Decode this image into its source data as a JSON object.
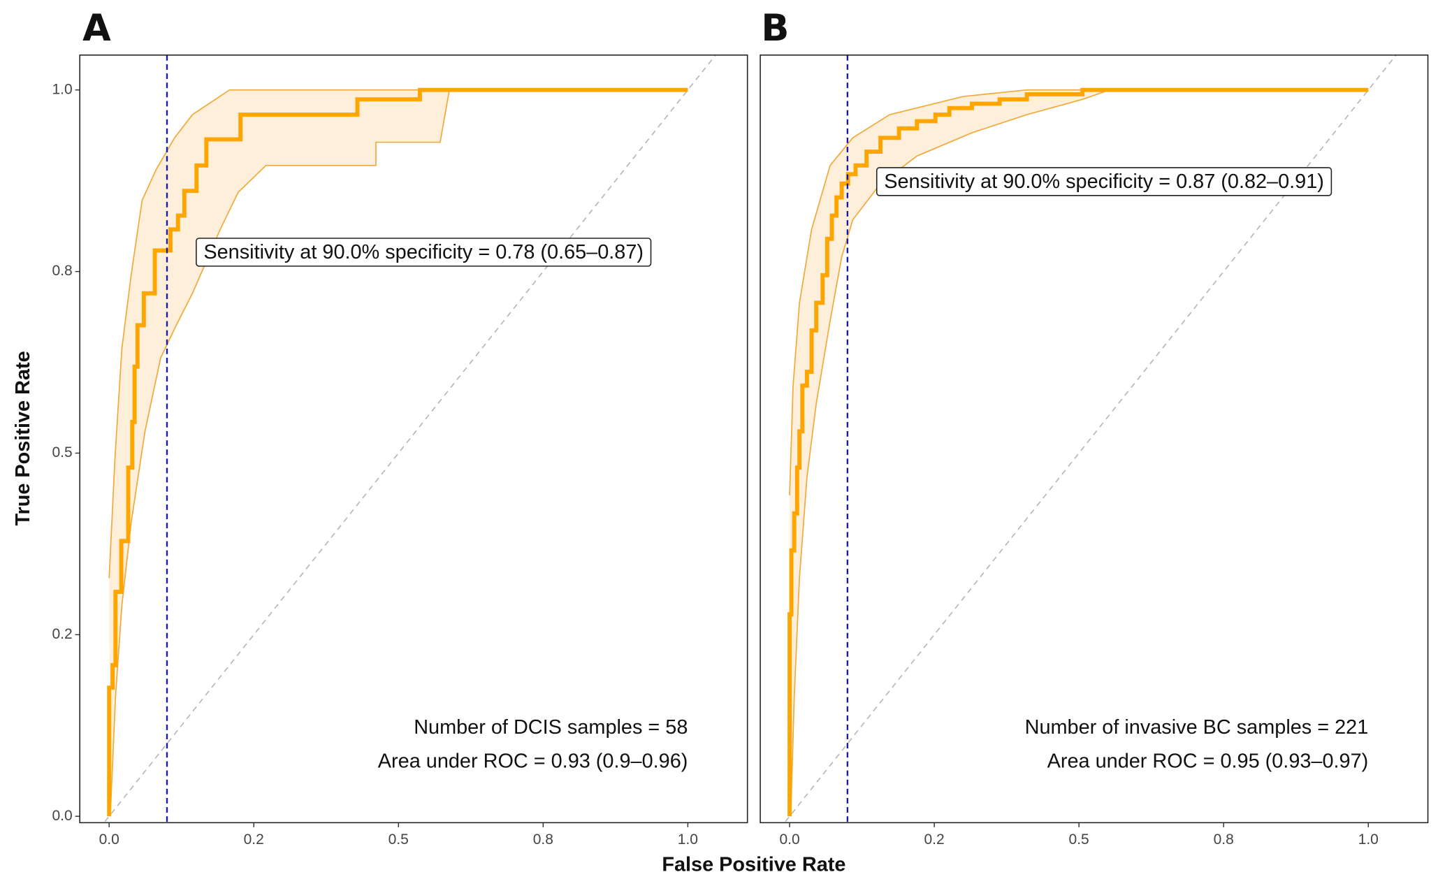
{
  "figure": {
    "xlabel": "False Positive Rate",
    "ylabel": "True Positive Rate"
  },
  "chart_data": [
    {
      "type": "line",
      "panel_label": "A",
      "xlim": [
        -0.0507,
        1.103
      ],
      "ylim": [
        -0.0088,
        1.048
      ],
      "xticks": [
        {
          "value": 0,
          "label": "0.0"
        },
        {
          "value": 0.25,
          "label": "0.2"
        },
        0.5,
        {
          "value": 0.75,
          "label": "0.8"
        },
        {
          "value": 1,
          "label": "1.0"
        }
      ],
      "yticks": [
        {
          "value": 0,
          "label": "0.0"
        },
        {
          "value": 0.25,
          "label": "0.2"
        },
        0.5,
        {
          "value": 0.75,
          "label": "0.8"
        },
        {
          "value": 1,
          "label": "1.0"
        }
      ],
      "vline": 0.1,
      "vline_color": "#1a1aa6",
      "diagonal": true,
      "annotation": "Sensitivity at 90.0% specificity = 0.78 (0.65–0.87)",
      "notes": [
        "Number of DCIS samples = 58",
        "Area under ROC = 0.93 (0.9–0.96)"
      ],
      "series": [
        {
          "color": "#FFA500",
          "x": [
            0,
            0,
            0.006,
            0.006,
            0.011,
            0.011,
            0.021,
            0.021,
            0.033,
            0.033,
            0.04,
            0.04,
            0.044,
            0.044,
            0.049,
            0.049,
            0.06,
            0.06,
            0.079,
            0.079,
            0.106,
            0.106,
            0.119,
            0.119,
            0.13,
            0.13,
            0.151,
            0.151,
            0.168,
            0.168,
            0.227,
            0.227,
            0.429,
            0.429,
            0.537,
            0.537,
            1
          ],
          "values": [
            0,
            0.177,
            0.177,
            0.208,
            0.208,
            0.309,
            0.309,
            0.379,
            0.379,
            0.48,
            0.48,
            0.543,
            0.543,
            0.619,
            0.619,
            0.676,
            0.676,
            0.72,
            0.72,
            0.779,
            0.779,
            0.808,
            0.808,
            0.827,
            0.827,
            0.861,
            0.861,
            0.896,
            0.896,
            0.932,
            0.932,
            0.966,
            0.966,
            0.987,
            0.987,
            1,
            1
          ]
        }
      ],
      "ci": {
        "color": "#F2A93B",
        "fill": "#FDEFD9",
        "upper": {
          "x": [
            0,
            0.01,
            0.022,
            0.038,
            0.057,
            0.081,
            0.113,
            0.144,
            0.208,
            1
          ],
          "values": [
            0.328,
            0.492,
            0.644,
            0.745,
            0.848,
            0.89,
            0.934,
            0.966,
            1,
            1
          ]
        },
        "lower": {
          "x": [
            0.002,
            0.011,
            0.022,
            0.038,
            0.062,
            0.089,
            0.116,
            0.144,
            0.192,
            0.223,
            0.271,
            0.461,
            0.461,
            0.572,
            0.588,
            1
          ],
          "values": [
            0,
            0.164,
            0.29,
            0.404,
            0.53,
            0.631,
            0.676,
            0.72,
            0.808,
            0.859,
            0.896,
            0.896,
            0.928,
            0.928,
            1,
            1
          ]
        }
      }
    },
    {
      "type": "line",
      "panel_label": "B",
      "xlim": [
        -0.0507,
        1.103
      ],
      "ylim": [
        -0.0088,
        1.048
      ],
      "xticks": [
        {
          "value": 0,
          "label": "0.0"
        },
        {
          "value": 0.25,
          "label": "0.2"
        },
        0.5,
        {
          "value": 0.75,
          "label": "0.8"
        },
        {
          "value": 1,
          "label": "1.0"
        }
      ],
      "vline": 0.1,
      "vline_color": "#1a1aa6",
      "diagonal": true,
      "annotation": "Sensitivity at 90.0% specificity = 0.87 (0.82–0.91)",
      "notes": [
        "Number of invasive BC samples = 221",
        "Area under ROC = 0.95 (0.93–0.97)"
      ],
      "series": [
        {
          "color": "#FFA500",
          "x": [
            0,
            0,
            0.003,
            0.003,
            0.008,
            0.008,
            0.013,
            0.013,
            0.017,
            0.017,
            0.022,
            0.022,
            0.03,
            0.03,
            0.038,
            0.038,
            0.046,
            0.046,
            0.057,
            0.057,
            0.065,
            0.065,
            0.073,
            0.073,
            0.081,
            0.081,
            0.09,
            0.09,
            0.101,
            0.101,
            0.114,
            0.114,
            0.133,
            0.133,
            0.157,
            0.157,
            0.189,
            0.189,
            0.22,
            0.22,
            0.252,
            0.252,
            0.276,
            0.276,
            0.315,
            0.315,
            0.363,
            0.363,
            0.41,
            0.41,
            0.506,
            0.506,
            1
          ],
          "values": [
            0,
            0.278,
            0.278,
            0.366,
            0.366,
            0.417,
            0.417,
            0.48,
            0.48,
            0.53,
            0.53,
            0.593,
            0.593,
            0.612,
            0.612,
            0.669,
            0.669,
            0.707,
            0.707,
            0.745,
            0.745,
            0.795,
            0.795,
            0.827,
            0.827,
            0.852,
            0.852,
            0.871,
            0.871,
            0.884,
            0.884,
            0.896,
            0.896,
            0.915,
            0.915,
            0.934,
            0.934,
            0.947,
            0.947,
            0.957,
            0.957,
            0.966,
            0.966,
            0.975,
            0.975,
            0.981,
            0.981,
            0.987,
            0.987,
            0.994,
            0.994,
            1,
            1
          ]
        }
      ],
      "ci": {
        "color": "#F2A93B",
        "fill": "#FDEFD9",
        "upper": {
          "x": [
            0,
            0.006,
            0.017,
            0.038,
            0.07,
            0.109,
            0.173,
            0.3,
            0.41,
            1
          ],
          "values": [
            0.442,
            0.593,
            0.707,
            0.808,
            0.896,
            0.934,
            0.966,
            0.991,
            1,
            1
          ]
        },
        "lower": {
          "x": [
            0.002,
            0.008,
            0.017,
            0.03,
            0.046,
            0.07,
            0.09,
            0.109,
            0.157,
            0.22,
            0.315,
            0.41,
            0.506,
            0.553,
            1
          ],
          "values": [
            0,
            0.164,
            0.328,
            0.467,
            0.568,
            0.682,
            0.77,
            0.821,
            0.871,
            0.909,
            0.941,
            0.966,
            0.987,
            1,
            1
          ]
        }
      }
    }
  ]
}
